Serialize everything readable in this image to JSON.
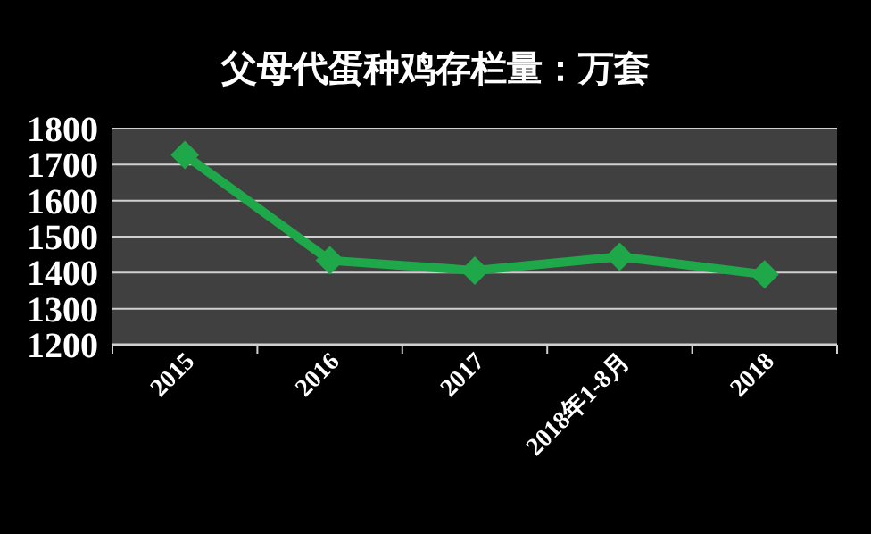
{
  "chart_data": {
    "type": "line",
    "title": "父母代蛋种鸡存栏量：万套",
    "categories": [
      "2015",
      "2016",
      "2017",
      "2018年1-8月",
      "2018"
    ],
    "series": [
      {
        "color": "#1fa84a",
        "values": [
          1727,
          1434,
          1406,
          1444,
          1395
        ]
      }
    ],
    "ylim": [
      1200,
      1800
    ],
    "yticks": [
      1200,
      1300,
      1400,
      1500,
      1600,
      1700,
      1800
    ],
    "grid": "y",
    "marker": "diamond",
    "line_style": "solid"
  }
}
